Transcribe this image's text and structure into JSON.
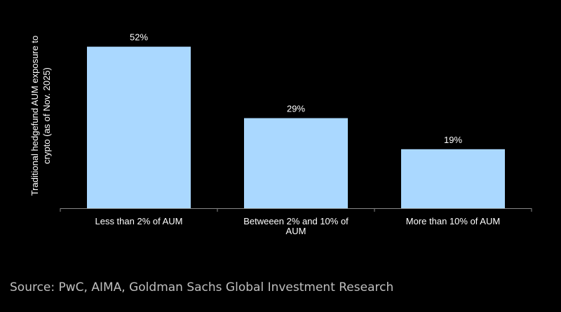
{
  "chart_data": {
    "type": "bar",
    "title": "",
    "ylabel_lines": [
      "Traditional hedgefund AUM exposure to",
      "crypto (as of Nov. 2025)"
    ],
    "xlabel": "",
    "categories": [
      [
        "Less than 2% of AUM"
      ],
      [
        "Betweeen 2% and 10% of",
        "AUM"
      ],
      [
        "More than 10% of AUM"
      ]
    ],
    "values": [
      52,
      29,
      19
    ],
    "data_labels": [
      "52%",
      "29%",
      "19%"
    ],
    "ylim": [
      0,
      58
    ],
    "grid": false,
    "bar_color": "#aad8ff",
    "axis_color": "#888888"
  },
  "source": "Source: PwC, AIMA, Goldman Sachs Global Investment Research",
  "colors": {
    "background": "#000000",
    "text": "#ffffff",
    "source_text": "#bfbfbf"
  }
}
